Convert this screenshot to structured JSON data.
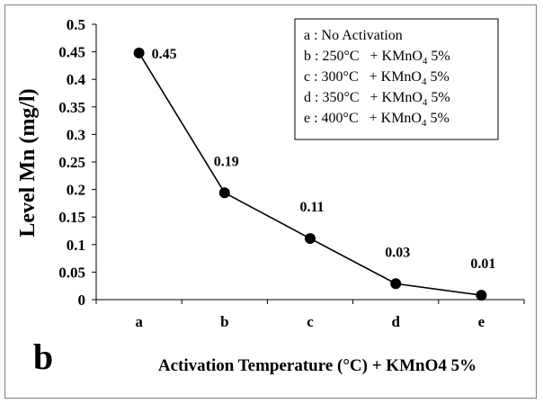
{
  "chart_data": {
    "type": "line",
    "panel_label": "b",
    "title": "",
    "xlabel": "Activation Temperature (°C) + KMnO4 5%",
    "ylabel": "Level Mn (mg/l)",
    "ylim": [
      0,
      0.5
    ],
    "yticks": [
      0,
      0.05,
      0.1,
      0.15,
      0.2,
      0.25,
      0.3,
      0.35,
      0.4,
      0.45,
      0.5
    ],
    "ytick_labels": [
      "0",
      "0.05",
      "0.1",
      "0.15",
      "0.2",
      "0.25",
      "0.3",
      "0.35",
      "0.4",
      "0.45",
      "0.5"
    ],
    "categories": [
      "a",
      "b",
      "c",
      "d",
      "e"
    ],
    "series": [
      {
        "values": [
          0.448,
          0.194,
          0.111,
          0.029,
          0.008
        ]
      }
    ],
    "data_labels": [
      "0.45",
      "0.19",
      "0.11",
      "0.03",
      "0.01"
    ],
    "grid": false,
    "legend_placement": "top-right",
    "legend": [
      {
        "prefix": "a : No Activation",
        "temp": "",
        "plus": "",
        "chem": "",
        "sub": "",
        "pct": ""
      },
      {
        "prefix": "b : 250°C",
        "temp": "",
        "plus": "+ KMnO",
        "chem": "",
        "sub": "4",
        "pct": " 5%"
      },
      {
        "prefix": "c : 300°C",
        "temp": "",
        "plus": "+ KMnO",
        "chem": "",
        "sub": "4",
        "pct": "  5%"
      },
      {
        "prefix": "d : 350°C",
        "temp": "",
        "plus": "+ KMnO",
        "chem": "",
        "sub": "4",
        "pct": " 5%"
      },
      {
        "prefix": "e : 400°C",
        "temp": "",
        "plus": "+ KMnO",
        "chem": "",
        "sub": "4",
        "pct": " 5%"
      }
    ],
    "line_color": "#000000",
    "marker_color": "#000000"
  }
}
